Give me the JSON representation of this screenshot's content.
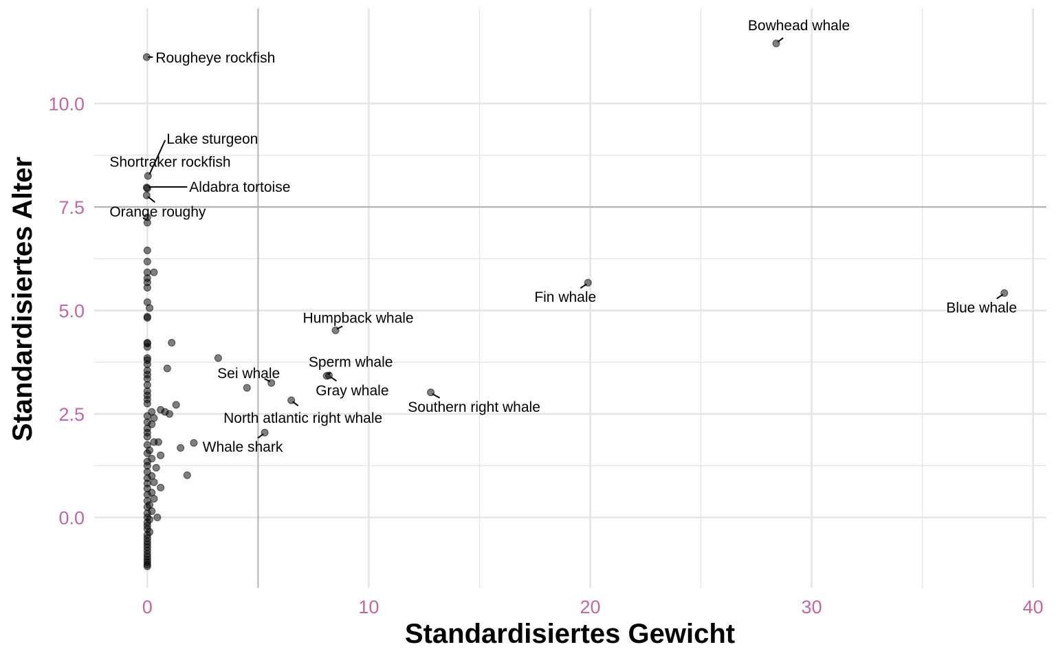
{
  "chart_data": {
    "type": "scatter",
    "title": "",
    "xlabel": "Standardisiertes Gewicht",
    "ylabel": "Standardisiertes Alter",
    "xlim": [
      -2.4,
      40.6
    ],
    "ylim": [
      -1.7,
      12.3
    ],
    "x_ticks": [
      0,
      10,
      20,
      30,
      40
    ],
    "x_tick_labels": [
      "0",
      "10",
      "20",
      "30",
      "40"
    ],
    "y_ticks": [
      0,
      2.5,
      5,
      7.5,
      10
    ],
    "y_tick_labels": [
      "0.0",
      "2.5",
      "5.0",
      "7.5",
      "10.0"
    ],
    "reference_lines": {
      "x": 5,
      "y": 7.5
    },
    "grid": true,
    "legend": "none",
    "colors": {
      "tick_labels": "#c2679d",
      "points": "#000000",
      "grid": "#e5e5e5",
      "reference": "#b3b3b3"
    },
    "labeled_points": [
      {
        "name": "Bowhead whale",
        "x": 28.4,
        "y": 11.45
      },
      {
        "name": "Rougheye rockfish",
        "x": -0.03,
        "y": 11.12
      },
      {
        "name": "Lake sturgeon",
        "x": 0.03,
        "y": 8.25
      },
      {
        "name": "Shortraker rockfish",
        "x": -0.03,
        "y": 7.97
      },
      {
        "name": "Aldabra tortoise",
        "x": 0.0,
        "y": 7.95
      },
      {
        "name": "Orange roughy",
        "x": -0.03,
        "y": 7.78
      },
      {
        "name": "Fin whale",
        "x": 19.9,
        "y": 5.67
      },
      {
        "name": "Blue whale",
        "x": 38.7,
        "y": 5.42
      },
      {
        "name": "Humpback whale",
        "x": 8.5,
        "y": 4.52
      },
      {
        "name": "Sperm whale",
        "x": 8.1,
        "y": 3.42
      },
      {
        "name": "Gray whale",
        "x": 8.2,
        "y": 3.43
      },
      {
        "name": "Sei whale",
        "x": 5.6,
        "y": 3.25
      },
      {
        "name": "Southern right whale",
        "x": 12.8,
        "y": 3.02
      },
      {
        "name": "North atlantic right whale",
        "x": 6.5,
        "y": 2.83
      },
      {
        "name": "Whale shark",
        "x": 5.3,
        "y": 2.05
      }
    ],
    "other_points": [
      [
        0.0,
        7.25
      ],
      [
        0.0,
        7.12
      ],
      [
        0.0,
        6.45
      ],
      [
        0.0,
        6.18
      ],
      [
        0.0,
        5.92
      ],
      [
        0.3,
        5.92
      ],
      [
        0.0,
        5.78
      ],
      [
        0.0,
        5.68
      ],
      [
        0.0,
        5.55
      ],
      [
        0.0,
        5.2
      ],
      [
        0.1,
        5.06
      ],
      [
        0.0,
        4.85
      ],
      [
        0.0,
        4.82
      ],
      [
        0.0,
        4.22
      ],
      [
        0.0,
        4.2
      ],
      [
        0.0,
        4.12
      ],
      [
        1.1,
        4.22
      ],
      [
        0.0,
        3.85
      ],
      [
        0.0,
        3.8
      ],
      [
        0.0,
        3.7
      ],
      [
        3.2,
        3.85
      ],
      [
        0.9,
        3.6
      ],
      [
        0.0,
        3.55
      ],
      [
        0.0,
        3.45
      ],
      [
        0.0,
        3.35
      ],
      [
        0.0,
        3.2
      ],
      [
        4.5,
        3.13
      ],
      [
        0.0,
        3.05
      ],
      [
        0.0,
        2.95
      ],
      [
        0.0,
        2.85
      ],
      [
        0.0,
        2.75
      ],
      [
        1.3,
        2.72
      ],
      [
        0.6,
        2.6
      ],
      [
        0.8,
        2.55
      ],
      [
        1.0,
        2.5
      ],
      [
        0.2,
        2.55
      ],
      [
        0.0,
        2.45
      ],
      [
        0.3,
        2.4
      ],
      [
        0.0,
        2.3
      ],
      [
        0.2,
        2.25
      ],
      [
        0.0,
        2.15
      ],
      [
        0.0,
        2.05
      ],
      [
        0.0,
        1.95
      ],
      [
        0.3,
        1.82
      ],
      [
        0.5,
        1.82
      ],
      [
        2.1,
        1.8
      ],
      [
        1.5,
        1.68
      ],
      [
        0.0,
        1.75
      ],
      [
        0.1,
        1.62
      ],
      [
        0.0,
        1.55
      ],
      [
        0.6,
        1.5
      ],
      [
        0.2,
        1.42
      ],
      [
        0.0,
        1.35
      ],
      [
        0.4,
        1.2
      ],
      [
        0.0,
        1.25
      ],
      [
        1.8,
        1.02
      ],
      [
        0.0,
        1.1
      ],
      [
        0.2,
        1.0
      ],
      [
        0.0,
        0.95
      ],
      [
        0.3,
        0.85
      ],
      [
        0.0,
        0.82
      ],
      [
        0.6,
        0.72
      ],
      [
        0.0,
        0.7
      ],
      [
        0.2,
        0.6
      ],
      [
        0.0,
        0.55
      ],
      [
        0.3,
        0.45
      ],
      [
        0.0,
        0.4
      ],
      [
        0.1,
        0.3
      ],
      [
        0.0,
        0.25
      ],
      [
        0.2,
        0.15
      ],
      [
        0.0,
        0.1
      ],
      [
        0.0,
        0.0
      ],
      [
        0.45,
        0.0
      ],
      [
        0.1,
        -0.05
      ],
      [
        0.0,
        -0.12
      ],
      [
        0.0,
        -0.2
      ],
      [
        0.0,
        -0.28
      ],
      [
        0.1,
        -0.35
      ],
      [
        0.0,
        -0.42
      ],
      [
        0.0,
        -0.5
      ],
      [
        0.0,
        -0.58
      ],
      [
        0.0,
        -0.65
      ],
      [
        0.0,
        -0.72
      ],
      [
        0.0,
        -0.8
      ],
      [
        0.0,
        -0.88
      ],
      [
        0.0,
        -0.95
      ],
      [
        0.0,
        -1.02
      ],
      [
        0.0,
        -1.08
      ],
      [
        0.0,
        -1.14
      ],
      [
        0.0,
        -1.18
      ]
    ]
  }
}
